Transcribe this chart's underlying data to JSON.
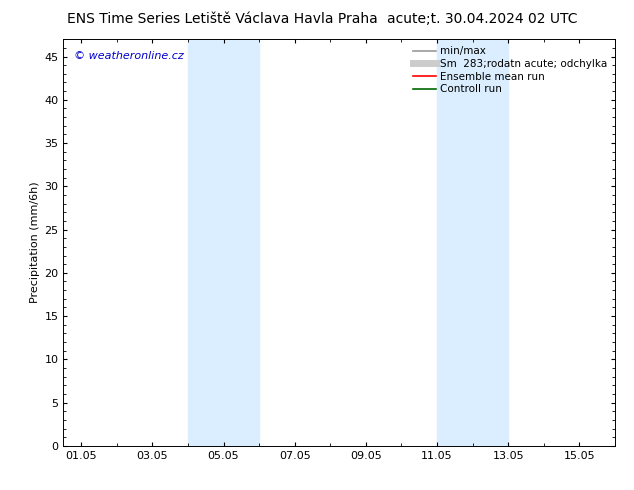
{
  "title_left": "ENS Time Series Letiště Václava Havla Praha",
  "title_right": "acute;t. 30.04.2024 02 UTC",
  "ylabel": "Precipitation (mm/6h)",
  "watermark": "© weatheronline.cz",
  "watermark_color": "#0000cc",
  "ylim": [
    0,
    47
  ],
  "yticks": [
    0,
    5,
    10,
    15,
    20,
    25,
    30,
    35,
    40,
    45
  ],
  "xlim": [
    0.5,
    16.0
  ],
  "xtick_labels": [
    "01.05",
    "03.05",
    "05.05",
    "07.05",
    "09.05",
    "11.05",
    "13.05",
    "15.05"
  ],
  "xtick_days": [
    1,
    3,
    5,
    7,
    9,
    11,
    13,
    15
  ],
  "blue_bands": [
    {
      "start_day": 4.0,
      "end_day": 6.0
    },
    {
      "start_day": 11.0,
      "end_day": 13.0
    }
  ],
  "band_color": "#daeeff",
  "legend_entries": [
    {
      "label": "min/max",
      "color": "#999999",
      "lw": 1.2
    },
    {
      "label": "Sm  283;rodatn acute; odchylka",
      "color": "#cccccc",
      "lw": 5
    },
    {
      "label": "Ensemble mean run",
      "color": "#ff0000",
      "lw": 1.2
    },
    {
      "label": "Controll run",
      "color": "#006600",
      "lw": 1.2
    }
  ],
  "bg_color": "#ffffff",
  "header_bg": "#f0f0f0",
  "title_fontsize": 10,
  "axis_label_fontsize": 8,
  "tick_fontsize": 8,
  "legend_fontsize": 7.5
}
